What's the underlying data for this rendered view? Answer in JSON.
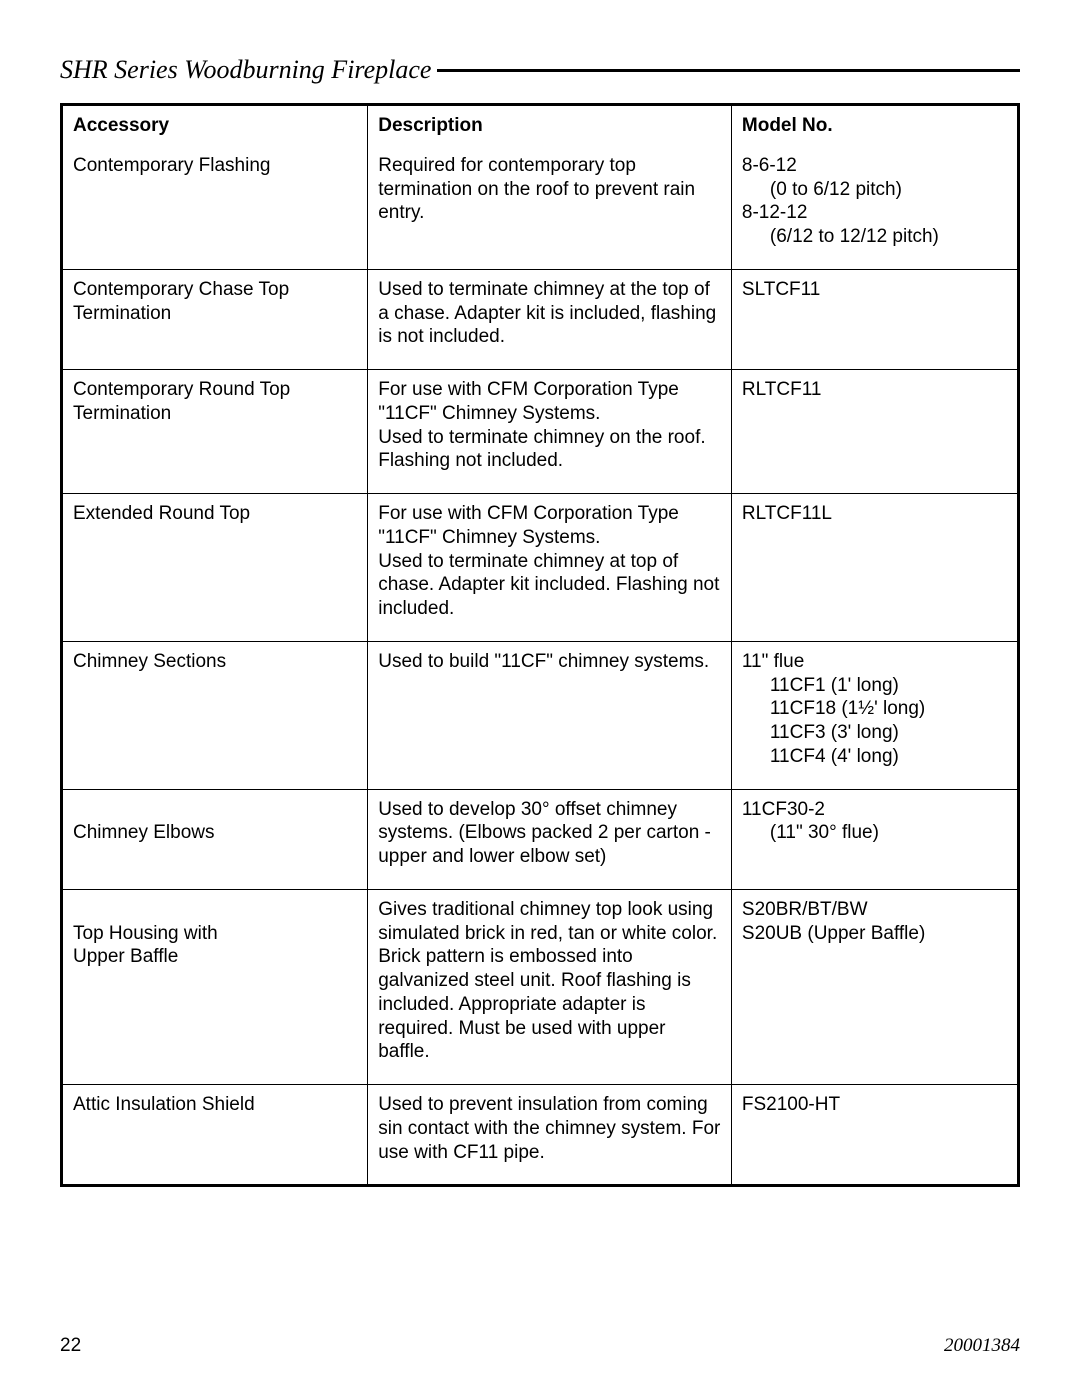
{
  "header": {
    "title": "SHR Series Woodburning Fireplace"
  },
  "table": {
    "columns": [
      "Accessory",
      "Description",
      "Model No."
    ],
    "rows": [
      {
        "accessory_lines": [
          "Contemporary Flashing"
        ],
        "description_lines": [
          "Required for contemporary top termination on the roof to prevent rain entry."
        ],
        "model_blocks": [
          {
            "main": "8-6-12",
            "sub": "(0 to 6/12 pitch)"
          },
          {
            "main": "8-12-12",
            "sub": "(6/12 to 12/12 pitch)"
          }
        ]
      },
      {
        "accessory_lines": [
          "Contemporary Chase Top Termination"
        ],
        "description_lines": [
          "Used to terminate chimney at the top of a chase. Adapter kit is included, flashing is not included."
        ],
        "model_blocks": [
          {
            "main": "SLTCF11"
          }
        ]
      },
      {
        "accessory_lines": [
          "Contemporary Round Top Termination"
        ],
        "description_lines": [
          "For use with CFM Corporation Type \"11CF\" Chimney Systems.",
          "Used to terminate chimney on the roof. Flashing not included."
        ],
        "model_blocks": [
          {
            "main": "RLTCF11"
          }
        ]
      },
      {
        "accessory_lines": [
          "Extended Round Top"
        ],
        "description_lines": [
          "For use with CFM Corporation Type \"11CF\" Chimney Systems.",
          "Used to terminate chimney at top of chase. Adapter kit included. Flashing not included."
        ],
        "model_blocks": [
          {
            "main": "RLTCF11L"
          }
        ]
      },
      {
        "accessory_lines": [
          "Chimney Sections"
        ],
        "description_lines": [
          "Used to build \"11CF\" chimney systems."
        ],
        "model_blocks": [
          {
            "main": "11\" flue",
            "sub_list": [
              "11CF1 (1' long)",
              "11CF18 (1½' long)",
              "11CF3 (3' long)",
              "11CF4 (4' long)"
            ]
          }
        ]
      },
      {
        "accessory_lines": [
          "",
          "Chimney Elbows"
        ],
        "description_lines": [
          "Used to develop 30° offset chimney systems. (Elbows packed 2 per carton - upper and lower elbow set)"
        ],
        "model_blocks": [
          {
            "main": "11CF30-2",
            "sub": "(11\" 30° flue)"
          }
        ]
      },
      {
        "accessory_lines": [
          "",
          "Top Housing with",
          "Upper Baffle"
        ],
        "description_lines": [
          "Gives traditional chimney top look using simulated brick in red, tan or white color. Brick pattern is embossed into galvanized steel unit. Roof flashing is included. Appropriate adapter is required. Must be used with upper baffle."
        ],
        "model_blocks": [
          {
            "main": "S20BR/BT/BW"
          },
          {
            "main": "S20UB (Upper Baffle)"
          }
        ]
      },
      {
        "accessory_lines": [
          "Attic Insulation Shield"
        ],
        "description_lines": [
          "Used to prevent insulation from coming sin contact with the chimney system. For use with CF11 pipe."
        ],
        "model_blocks": [
          {
            "main": "FS2100-HT"
          }
        ]
      }
    ]
  },
  "footer": {
    "page_number": "22",
    "doc_number": "20001384"
  }
}
